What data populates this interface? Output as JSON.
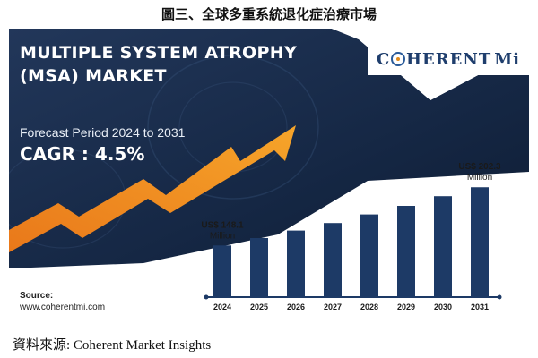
{
  "figure_caption": "圖三、全球多重系統退化症治療市場",
  "headline": "MULTIPLE SYSTEM ATROPHY (MSA) MARKET",
  "forecast_text": "Forecast Period 2024 to 2031",
  "cagr_text": "CAGR : 4.5%",
  "logo": {
    "prefix": "C",
    "rest": "HERENT",
    "suffix": "Mi",
    "icon": "globe-icon"
  },
  "source": {
    "label": "Source:",
    "url": "www.coherentmi.com"
  },
  "credit": "資料來源: Coherent Market Insights",
  "colors": {
    "bar": "#1d3a66",
    "accent_arrow": "#f0921e",
    "banner": "#16294a",
    "text_dark": "#1a1a1a"
  },
  "chart_data": {
    "type": "bar",
    "categories": [
      "2024",
      "2025",
      "2026",
      "2027",
      "2028",
      "2029",
      "2030",
      "2031"
    ],
    "values": [
      148.1,
      155.0,
      162.0,
      169.0,
      177.0,
      185.0,
      194.0,
      202.3
    ],
    "annotations": [
      {
        "category": "2024",
        "lines": [
          "US$ 148.1",
          "Million"
        ]
      },
      {
        "category": "2031",
        "lines": [
          "US$ 202.3",
          "Million"
        ]
      }
    ],
    "title": "",
    "xlabel": "",
    "ylabel": "",
    "ylim": [
      100,
      210
    ],
    "grid": false,
    "legend": "none"
  }
}
